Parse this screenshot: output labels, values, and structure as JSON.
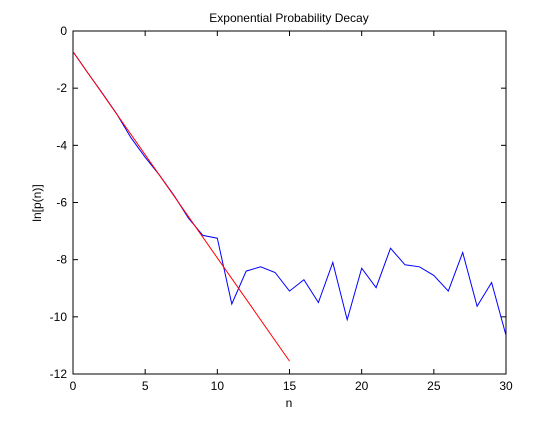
{
  "chart_data": {
    "type": "line",
    "title": "Exponential Probability Decay",
    "xlabel": "n",
    "ylabel": "ln[p(n)]",
    "xlim": [
      0,
      30
    ],
    "ylim": [
      -12,
      0
    ],
    "xticks": [
      0,
      5,
      10,
      15,
      20,
      25,
      30
    ],
    "yticks": [
      0,
      -2,
      -4,
      -6,
      -8,
      -10,
      -12
    ],
    "grid": false,
    "legend": "none",
    "series": [
      {
        "color": "#0000ff",
        "x": [
          0,
          1,
          2,
          3,
          4,
          5,
          6,
          7,
          8,
          9,
          10,
          11,
          12,
          13,
          14,
          15,
          16,
          17,
          18,
          19,
          20,
          21,
          22,
          23,
          24,
          25,
          26,
          27,
          28,
          29,
          30
        ],
        "y": [
          -0.72,
          -1.45,
          -2.15,
          -2.88,
          -3.72,
          -4.42,
          -5.05,
          -5.75,
          -6.55,
          -7.15,
          -7.25,
          -9.55,
          -8.4,
          -8.25,
          -8.45,
          -9.1,
          -8.7,
          -9.5,
          -8.1,
          -10.1,
          -8.3,
          -8.98,
          -7.6,
          -8.18,
          -8.25,
          -8.55,
          -9.1,
          -7.75,
          -9.63,
          -8.8,
          -10.65
        ]
      },
      {
        "color": "#ff0000",
        "x": [
          0,
          15
        ],
        "y": [
          -0.72,
          -11.55
        ]
      }
    ]
  }
}
